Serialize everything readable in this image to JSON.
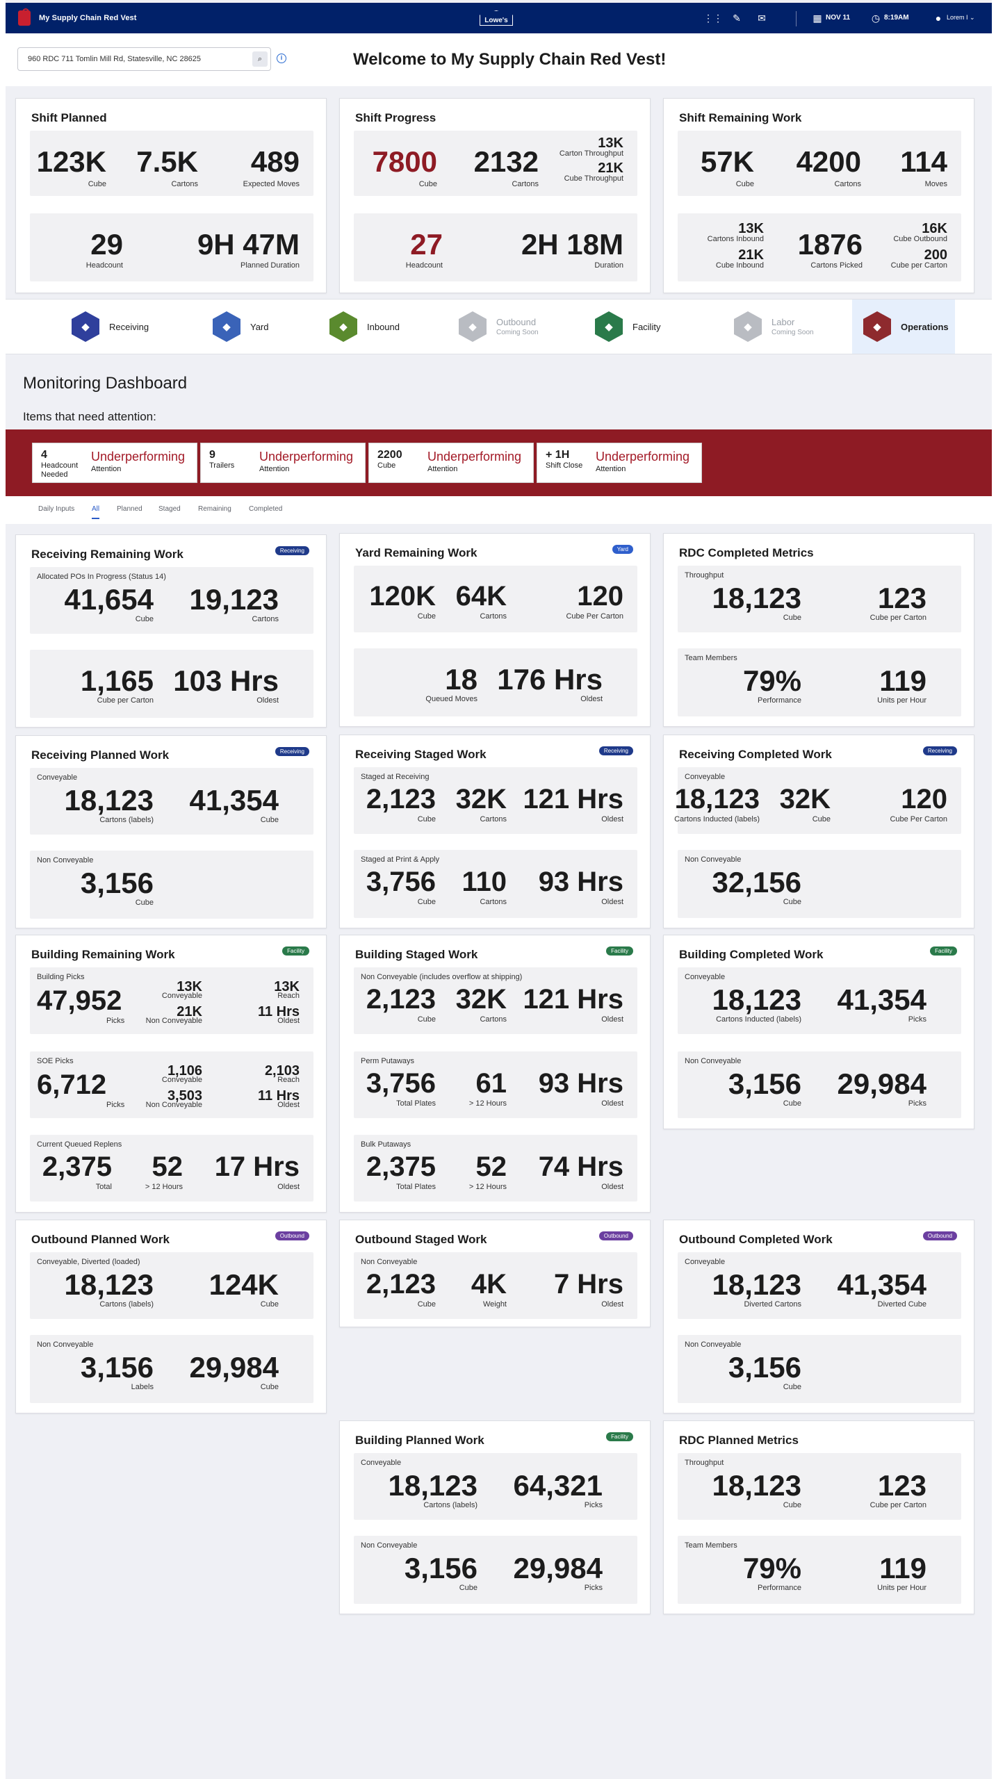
{
  "app": {
    "title": "My Supply Chain Red Vest",
    "logo": "Lowe's"
  },
  "header": {
    "date": "NOV 11",
    "time": "8:19AM",
    "user": "Lorem I"
  },
  "search": {
    "value": "960  RDC 711 Tomlin Mill Rd, Statesville, NC 28625"
  },
  "welcome": "Welcome to My Supply Chain Red Vest!",
  "shift_planned": {
    "title": "Shift Planned",
    "top": [
      {
        "v": "123K",
        "l": "Cube"
      },
      {
        "v": "7.5K",
        "l": "Cartons"
      },
      {
        "v": "489",
        "l": "Expected Moves"
      }
    ],
    "bottom": [
      {
        "v": "29",
        "l": "Headcount"
      },
      {
        "v": "9H 47M",
        "l": "Planned Duration"
      }
    ]
  },
  "shift_progress": {
    "title": "Shift Progress",
    "top": [
      {
        "v": "7800",
        "l": "Cube"
      },
      {
        "v": "2132",
        "l": "Cartons"
      },
      {
        "v": "13K",
        "l": "Carton Throughput"
      },
      {
        "v": "21K",
        "l": "Cube Throughput"
      }
    ],
    "bottom": [
      {
        "v": "27",
        "l": "Headcount"
      },
      {
        "v": "2H 18M",
        "l": "Duration"
      }
    ]
  },
  "shift_remaining": {
    "title": "Shift Remaining Work",
    "top": [
      {
        "v": "57K",
        "l": "Cube"
      },
      {
        "v": "4200",
        "l": "Cartons"
      },
      {
        "v": "114",
        "l": "Moves"
      }
    ],
    "bottom": [
      {
        "v": "13K",
        "l": "Cartons Inbound"
      },
      {
        "v": "21K",
        "l": "Cube Inbound"
      },
      {
        "v": "1876",
        "l": "Cartons Picked"
      },
      {
        "v": "16K",
        "l": "Cube Outbound"
      },
      {
        "v": "200",
        "l": "Cube per Carton"
      }
    ]
  },
  "nav": [
    {
      "label": "Receiving",
      "sub": "",
      "icon": "receiving-icon",
      "color": "#2f3f9c"
    },
    {
      "label": "Yard",
      "sub": "",
      "icon": "yard-truck-icon",
      "color": "#3a63b8"
    },
    {
      "label": "Inbound",
      "sub": "",
      "icon": "inbound-forklift-icon",
      "color": "#5a8a2e"
    },
    {
      "label": "Outbound",
      "sub": "Coming Soon",
      "icon": "outbound-truck-icon",
      "color": "#b9bcc2"
    },
    {
      "label": "Facility",
      "sub": "",
      "icon": "facility-building-icon",
      "color": "#2a7a4a"
    },
    {
      "label": "Labor",
      "sub": "Coming Soon",
      "icon": "labor-gear-icon",
      "color": "#b9bcc2"
    },
    {
      "label": "Operations",
      "sub": "",
      "icon": "operations-gear-icon",
      "color": "#8e2a2e"
    }
  ],
  "monitor": {
    "title": "Monitoring Dashboard",
    "attention": "Items that need attention:"
  },
  "alerts": [
    {
      "value": "4",
      "label": "Headcount Needed",
      "status": "Underperforming",
      "sub": "Attention"
    },
    {
      "value": "9",
      "label": "Trailers",
      "status": "Underperforming",
      "sub": "Attention"
    },
    {
      "value": "2200",
      "label": "Cube",
      "status": "Underperforming",
      "sub": "Attention"
    },
    {
      "value": "+ 1H",
      "label": "Shift Close",
      "status": "Underperforming",
      "sub": "Attention"
    }
  ],
  "tabs": [
    "Daily Inputs",
    "All",
    "Planned",
    "Staged",
    "Remaining",
    "Completed"
  ],
  "badge_colors": {
    "Receiving": "#1f3a8a",
    "Yard": "#2f5fcc",
    "Facility": "#2a7a4a",
    "Outbound": "#6b3fa0"
  },
  "cards": [
    {
      "title": "Receiving Remaining Work",
      "badge": "Receiving",
      "panels": [
        {
          "label": "Allocated POs In Progress (Status 14)",
          "stats": [
            {
              "v": "41,654",
              "l": "Cube"
            },
            {
              "v": "19,123",
              "l": "Cartons"
            }
          ]
        },
        {
          "label": "",
          "stats": [
            {
              "v": "1,165",
              "l": "Cube per Carton"
            },
            {
              "v": "103 Hrs",
              "l": "Oldest"
            }
          ]
        }
      ]
    },
    {
      "title": "Yard Remaining Work",
      "badge": "Yard",
      "panels": [
        {
          "label": "",
          "stats": [
            {
              "v": "120K",
              "l": "Cube"
            },
            {
              "v": "64K",
              "l": "Cartons"
            },
            {
              "v": "120",
              "l": "Cube Per Carton"
            }
          ]
        },
        {
          "label": "",
          "stats": [
            {
              "v": "18",
              "l": "Queued Moves"
            },
            {
              "v": "176 Hrs",
              "l": "Oldest"
            }
          ]
        }
      ]
    },
    {
      "title": "RDC Completed Metrics",
      "badge": "",
      "panels": [
        {
          "label": "Throughput",
          "stats": [
            {
              "v": "18,123",
              "l": "Cube"
            },
            {
              "v": "123",
              "l": "Cube per Carton"
            }
          ]
        },
        {
          "label": "Team Members",
          "stats": [
            {
              "v": "79%",
              "l": "Performance"
            },
            {
              "v": "119",
              "l": "Units per Hour"
            }
          ]
        }
      ]
    },
    {
      "title": "Receiving Planned Work",
      "badge": "Receiving",
      "panels": [
        {
          "label": "Conveyable",
          "stats": [
            {
              "v": "18,123",
              "l": "Cartons (labels)"
            },
            {
              "v": "41,354",
              "l": "Cube"
            }
          ]
        },
        {
          "label": "Non Conveyable",
          "stats": [
            {
              "v": "3,156",
              "l": "Cube"
            }
          ]
        }
      ]
    },
    {
      "title": "Receiving Staged Work",
      "badge": "Receiving",
      "panels": [
        {
          "label": "Staged at Receiving",
          "stats": [
            {
              "v": "2,123",
              "l": "Cube"
            },
            {
              "v": "32K",
              "l": "Cartons"
            },
            {
              "v": "121 Hrs",
              "l": "Oldest"
            }
          ]
        },
        {
          "label": "Staged at Print & Apply",
          "stats": [
            {
              "v": "3,756",
              "l": "Cube"
            },
            {
              "v": "110",
              "l": "Cartons"
            },
            {
              "v": "93 Hrs",
              "l": "Oldest"
            }
          ]
        }
      ]
    },
    {
      "title": "Receiving Completed Work",
      "badge": "Receiving",
      "panels": [
        {
          "label": "Conveyable",
          "stats": [
            {
              "v": "18,123",
              "l": "Cartons Inducted (labels)"
            },
            {
              "v": "32K",
              "l": "Cube"
            },
            {
              "v": "120",
              "l": "Cube Per Carton"
            }
          ]
        },
        {
          "label": "Non Conveyable",
          "stats": [
            {
              "v": "32,156",
              "l": "Cube"
            }
          ]
        }
      ]
    },
    {
      "title": "Building Remaining Work",
      "badge": "Facility",
      "panels": [
        {
          "label": "Building Picks",
          "stats": [
            {
              "v": "47,952",
              "l": "Picks"
            }
          ],
          "small": [
            {
              "v": "13K",
              "l": "Conveyable"
            },
            {
              "v": "13K",
              "l": "Reach"
            },
            {
              "v": "21K",
              "l": "Non Conveyable"
            },
            {
              "v": "11 Hrs",
              "l": "Oldest"
            }
          ]
        },
        {
          "label": "SOE Picks",
          "stats": [
            {
              "v": "6,712",
              "l": "Picks"
            }
          ],
          "small": [
            {
              "v": "1,106",
              "l": "Conveyable"
            },
            {
              "v": "2,103",
              "l": "Reach"
            },
            {
              "v": "3,503",
              "l": "Non Conveyable"
            },
            {
              "v": "11 Hrs",
              "l": "Oldest"
            }
          ]
        },
        {
          "label": "Current Queued Replens",
          "stats": [
            {
              "v": "2,375",
              "l": "Total"
            },
            {
              "v": "52",
              "l": "> 12 Hours"
            },
            {
              "v": "17 Hrs",
              "l": "Oldest"
            }
          ]
        }
      ]
    },
    {
      "title": "Building Staged Work",
      "badge": "Facility",
      "panels": [
        {
          "label": "Non Conveyable (includes overflow at shipping)",
          "stats": [
            {
              "v": "2,123",
              "l": "Cube"
            },
            {
              "v": "32K",
              "l": "Cartons"
            },
            {
              "v": "121 Hrs",
              "l": "Oldest"
            }
          ]
        },
        {
          "label": "Perm Putaways",
          "stats": [
            {
              "v": "3,756",
              "l": "Total Plates"
            },
            {
              "v": "61",
              "l": "> 12 Hours"
            },
            {
              "v": "93 Hrs",
              "l": "Oldest"
            }
          ]
        },
        {
          "label": "Bulk Putaways",
          "stats": [
            {
              "v": "2,375",
              "l": "Total Plates"
            },
            {
              "v": "52",
              "l": "> 12 Hours"
            },
            {
              "v": "74 Hrs",
              "l": "Oldest"
            }
          ]
        }
      ]
    },
    {
      "title": "Building Completed Work",
      "badge": "Facility",
      "panels": [
        {
          "label": "Conveyable",
          "stats": [
            {
              "v": "18,123",
              "l": "Cartons Inducted (labels)"
            },
            {
              "v": "41,354",
              "l": "Picks"
            }
          ]
        },
        {
          "label": "Non Conveyable",
          "stats": [
            {
              "v": "3,156",
              "l": "Cube"
            },
            {
              "v": "29,984",
              "l": "Picks"
            }
          ]
        }
      ]
    },
    {
      "title": "Outbound Planned Work",
      "badge": "Outbound",
      "panels": [
        {
          "label": "Conveyable, Diverted (loaded)",
          "stats": [
            {
              "v": "18,123",
              "l": "Cartons (labels)"
            },
            {
              "v": "124K",
              "l": "Cube"
            }
          ]
        },
        {
          "label": "Non Conveyable",
          "stats": [
            {
              "v": "3,156",
              "l": "Labels"
            },
            {
              "v": "29,984",
              "l": "Cube"
            }
          ]
        }
      ]
    },
    {
      "title": "Outbound Staged Work",
      "badge": "Outbound",
      "panels": [
        {
          "label": "Non Conveyable",
          "stats": [
            {
              "v": "2,123",
              "l": "Cube"
            },
            {
              "v": "4K",
              "l": "Weight"
            },
            {
              "v": "7 Hrs",
              "l": "Oldest"
            }
          ]
        }
      ]
    },
    {
      "title": "Outbound Completed Work",
      "badge": "Outbound",
      "panels": [
        {
          "label": "Conveyable",
          "stats": [
            {
              "v": "18,123",
              "l": "Diverted Cartons"
            },
            {
              "v": "41,354",
              "l": "Diverted Cube"
            }
          ]
        },
        {
          "label": "Non Conveyable",
          "stats": [
            {
              "v": "3,156",
              "l": "Cube"
            }
          ]
        }
      ]
    },
    {
      "title": "Building Planned Work",
      "badge": "Facility",
      "panels": [
        {
          "label": "Conveyable",
          "stats": [
            {
              "v": "18,123",
              "l": "Cartons (labels)"
            },
            {
              "v": "64,321",
              "l": "Picks"
            }
          ]
        },
        {
          "label": "Non Conveyable",
          "stats": [
            {
              "v": "3,156",
              "l": "Cube"
            },
            {
              "v": "29,984",
              "l": "Picks"
            }
          ]
        }
      ]
    },
    {
      "title": "RDC Planned Metrics",
      "badge": "",
      "panels": [
        {
          "label": "Throughput",
          "stats": [
            {
              "v": "18,123",
              "l": "Cube"
            },
            {
              "v": "123",
              "l": "Cube per Carton"
            }
          ]
        },
        {
          "label": "Team Members",
          "stats": [
            {
              "v": "79%",
              "l": "Performance"
            },
            {
              "v": "119",
              "l": "Units per Hour"
            }
          ]
        }
      ]
    }
  ]
}
